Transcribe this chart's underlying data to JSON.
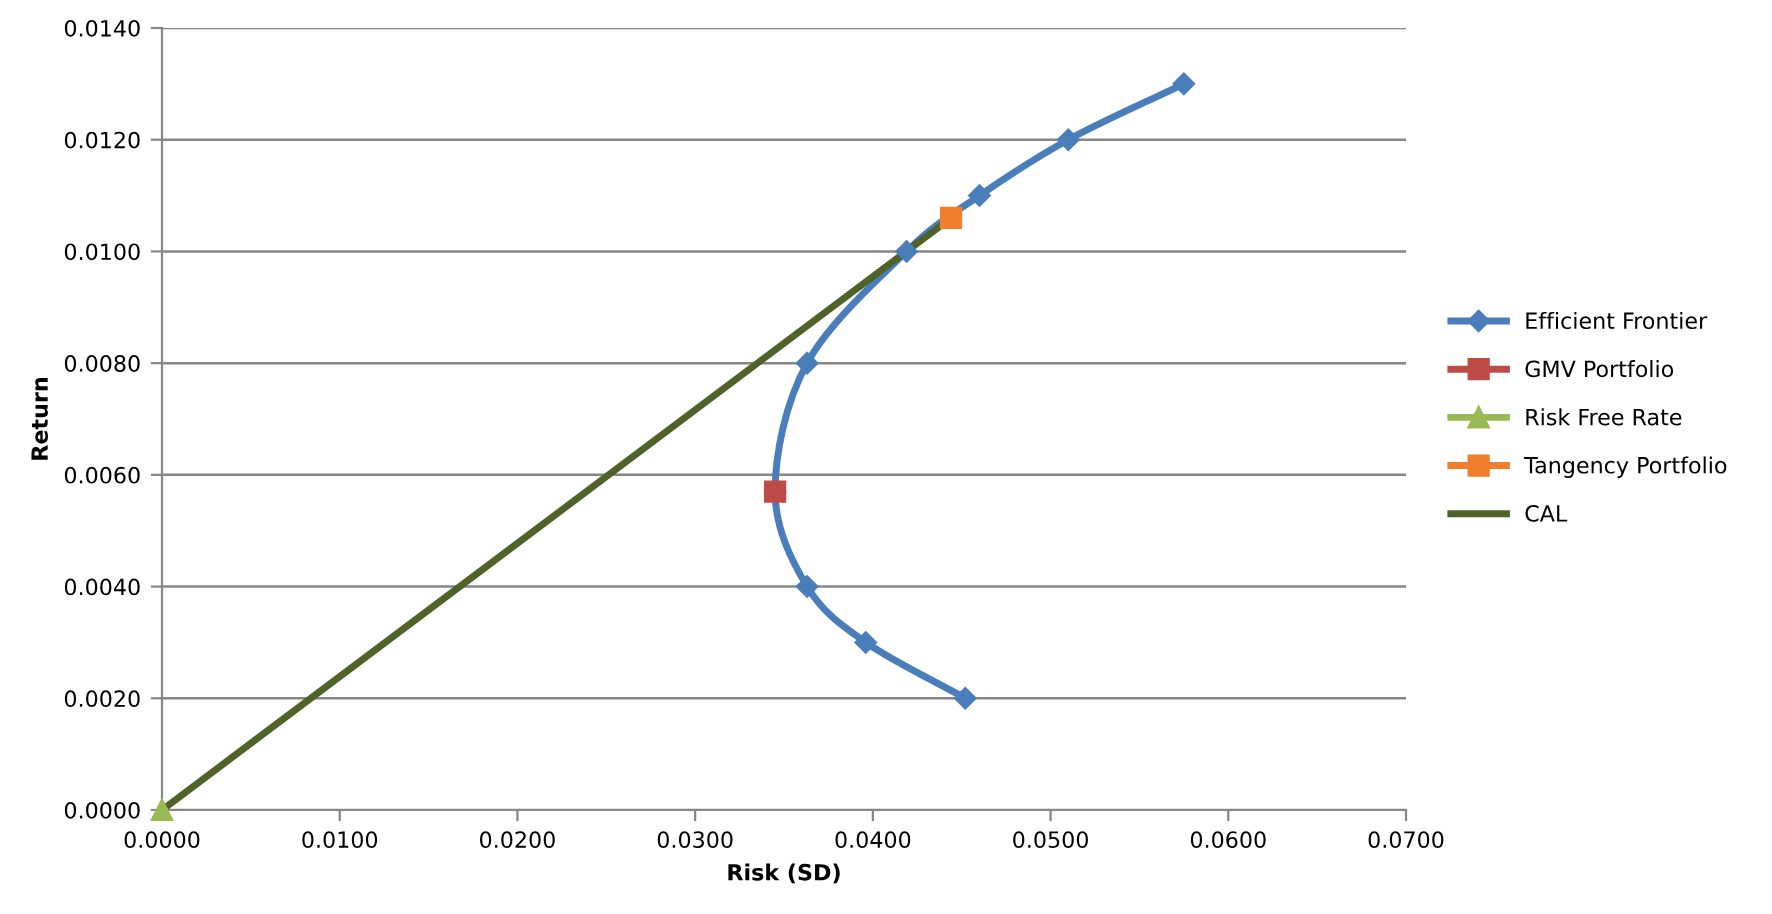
{
  "chart_data": {
    "type": "line",
    "xlabel": "Risk (SD)",
    "ylabel": "Return",
    "xlim": [
      0,
      0.07
    ],
    "xticks": [
      {
        "value": 0,
        "label": "0.0000"
      },
      {
        "value": 0.01,
        "label": "0.0100"
      },
      {
        "value": 0.02,
        "label": "0.0200"
      },
      {
        "value": 0.03,
        "label": "0.0300"
      },
      {
        "value": 0.04,
        "label": "0.0400"
      },
      {
        "value": 0.05,
        "label": "0.0500"
      },
      {
        "value": 0.06,
        "label": "0.0600"
      },
      {
        "value": 0.07,
        "label": "0.0700"
      }
    ],
    "ylim": [
      0,
      0.014
    ],
    "yticks": [
      {
        "value": 0,
        "label": "0.0000"
      },
      {
        "value": 0.002,
        "label": "0.0020"
      },
      {
        "value": 0.004,
        "label": "0.0040"
      },
      {
        "value": 0.006,
        "label": "0.0060"
      },
      {
        "value": 0.008,
        "label": "0.0080"
      },
      {
        "value": 0.01,
        "label": "0.0100"
      },
      {
        "value": 0.012,
        "label": "0.0120"
      },
      {
        "value": 0.014,
        "label": "0.0140"
      }
    ],
    "grid": "y",
    "legend": "right",
    "series": [
      {
        "name": "Efficient Frontier",
        "color": "#4a7ebb",
        "marker": "diamond",
        "x": [
          0.0452,
          0.0396,
          0.0363,
          0.0345,
          0.0363,
          0.0419,
          0.046,
          0.051,
          0.0575
        ],
        "values": [
          0.002,
          0.003,
          0.004,
          0.0057,
          0.008,
          0.01,
          0.011,
          0.012,
          0.013
        ]
      },
      {
        "name": "GMV Portfolio",
        "type": "scatter",
        "color": "#be4b48",
        "marker": "square",
        "x": [
          0.0345
        ],
        "values": [
          0.0057
        ]
      },
      {
        "name": "Risk Free Rate",
        "type": "scatter",
        "color": "#98b954",
        "marker": "triangle",
        "x": [
          0.0
        ],
        "values": [
          0.0
        ]
      },
      {
        "name": "Tangency Portfolio",
        "type": "scatter",
        "color": "#f07e2d",
        "marker": "square",
        "x": [
          0.0444
        ],
        "values": [
          0.0106
        ]
      },
      {
        "name": "CAL",
        "type": "line",
        "color": "#4f6228",
        "marker": "none",
        "x": [
          0.0,
          0.0444
        ],
        "values": [
          0.0,
          0.0106
        ]
      }
    ]
  }
}
